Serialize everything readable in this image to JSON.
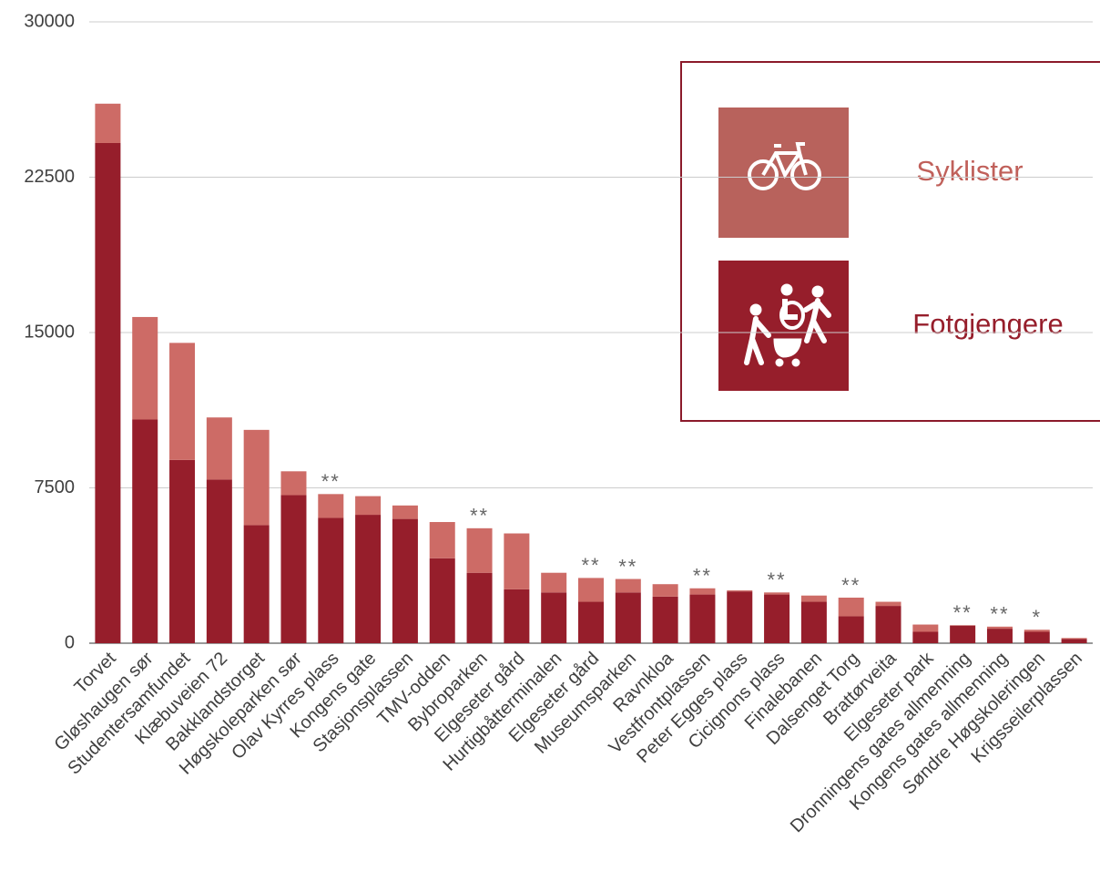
{
  "chart_data": {
    "type": "stacked_bar",
    "categories": [
      "Torvet",
      "Gløshaugen sør",
      "Studentersamfundet",
      "Klæbuveien 72",
      "Bakklandstorget",
      "Høgskoleparken sør",
      "Olav Kyrres plass",
      "Kongens gate",
      "Stasjonsplassen",
      "TMV-odden",
      "Bybroparken",
      "Elgeseter gård",
      "Hurtigbåtterminalen",
      "Elgeseter gård",
      "Museumsparken",
      "Ravnkloa",
      "Vestfrontplassen",
      "Peter Egges plass",
      "Cicignons plass",
      "Finalebanen",
      "Dalsenget Torg",
      "Brattørveita",
      "Elgeseter park",
      "Dronningens gates allmenning",
      "Kongens gates allmenning",
      "Søndre Høgskoleringen",
      "Krigsseilerplassen"
    ],
    "series": [
      {
        "name": "Syklister",
        "color": "#cd6b66",
        "legend_color": "#b8625c",
        "values": [
          1900,
          4950,
          5650,
          3000,
          4600,
          1150,
          1150,
          900,
          650,
          1750,
          2150,
          2700,
          950,
          1150,
          650,
          600,
          300,
          50,
          100,
          300,
          900,
          200,
          350,
          20,
          100,
          100,
          50
        ]
      },
      {
        "name": "Fotgjengere",
        "color": "#961e2b",
        "legend_color": "#961e2b",
        "values": [
          24150,
          10800,
          8850,
          7900,
          5700,
          7150,
          6050,
          6200,
          6000,
          4100,
          3400,
          2600,
          2450,
          2000,
          2450,
          2250,
          2350,
          2500,
          2350,
          2000,
          1300,
          1800,
          550,
          850,
          700,
          550,
          200
        ]
      }
    ],
    "annotations": [
      null,
      null,
      null,
      null,
      null,
      null,
      "**",
      null,
      null,
      null,
      "**",
      null,
      null,
      "**",
      "**",
      null,
      "**",
      null,
      "**",
      null,
      "**",
      null,
      null,
      "**",
      "**",
      "*",
      null
    ],
    "ylim": [
      0,
      30000
    ],
    "yticks": [
      0,
      7500,
      15000,
      22500,
      30000
    ],
    "grid": true
  }
}
